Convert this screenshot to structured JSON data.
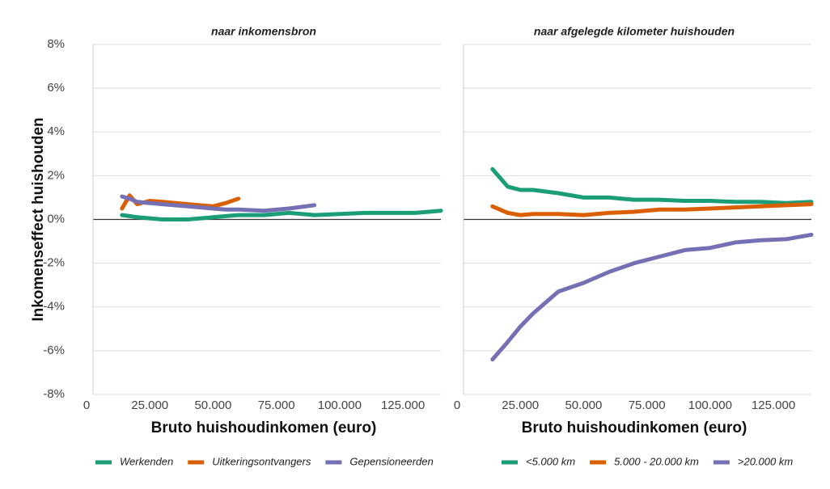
{
  "chart_data": [
    {
      "type": "line",
      "title": "naar inkomensbron",
      "xlabel": "Bruto huishoudinkomen (euro)",
      "ylabel": "Inkomenseffect huishouden",
      "x": [
        14000,
        17000,
        20000,
        25000,
        30000,
        40000,
        50000,
        55000,
        60000,
        70000,
        80000,
        90000,
        100000,
        110000,
        120000,
        130000,
        140000
      ],
      "series": [
        {
          "name": "Werkenden",
          "color": "#1b9e77",
          "values": [
            0.2,
            0.15,
            0.1,
            0.05,
            0.0,
            0.0,
            0.1,
            0.15,
            0.2,
            0.2,
            0.3,
            0.2,
            0.25,
            0.3,
            0.3,
            0.3,
            0.4
          ]
        },
        {
          "name": "Uitkeringsontvangers",
          "color": "#d95f02",
          "values": [
            0.5,
            1.1,
            0.7,
            0.85,
            0.8,
            0.7,
            0.6,
            0.75,
            0.95,
            null,
            null,
            null,
            null,
            null,
            null,
            null,
            null
          ]
        },
        {
          "name": "Gepensioneerden",
          "color": "#7570b3",
          "values": [
            1.05,
            0.95,
            0.8,
            0.75,
            0.7,
            0.6,
            0.5,
            0.45,
            0.45,
            0.4,
            0.5,
            0.65,
            null,
            null,
            null,
            null,
            null
          ]
        }
      ],
      "xlim": [
        0,
        140000
      ],
      "xticks": [
        0,
        {
          "value": 25000,
          "label": "25.000"
        },
        {
          "value": 50000,
          "label": "50.000"
        },
        {
          "value": 75000,
          "label": "75.000"
        },
        {
          "value": 100000,
          "label": "100.000"
        },
        {
          "value": 125000,
          "label": "125.000"
        }
      ],
      "ylim": [
        -8,
        8
      ],
      "yticks": [
        {
          "value": -8,
          "label": "-8%"
        },
        {
          "value": -6,
          "label": "-6%"
        },
        {
          "value": -4,
          "label": "-4%"
        },
        {
          "value": -2,
          "label": "-2%"
        },
        {
          "value": 0,
          "label": "0%"
        },
        {
          "value": 2,
          "label": "2%"
        },
        {
          "value": 4,
          "label": "4%"
        },
        {
          "value": 6,
          "label": "6%"
        },
        {
          "value": 8,
          "label": "8%"
        }
      ],
      "grid": true
    },
    {
      "type": "line",
      "title": "naar afgelegde kilometer huishouden",
      "xlabel": "Bruto huishoudinkomen (euro)",
      "x": [
        14000,
        20000,
        25000,
        30000,
        40000,
        50000,
        60000,
        70000,
        80000,
        90000,
        100000,
        110000,
        120000,
        130000,
        140000
      ],
      "series": [
        {
          "name": "<5.000 km",
          "color": "#1b9e77",
          "values": [
            2.3,
            1.5,
            1.35,
            1.35,
            1.2,
            1.0,
            1.0,
            0.9,
            0.9,
            0.85,
            0.85,
            0.8,
            0.8,
            0.75,
            0.8
          ]
        },
        {
          "name": "5.000 - 20.000 km",
          "color": "#d95f02",
          "values": [
            0.6,
            0.3,
            0.2,
            0.25,
            0.25,
            0.2,
            0.3,
            0.35,
            0.45,
            0.45,
            0.5,
            0.55,
            0.6,
            0.65,
            0.7
          ]
        },
        {
          "name": ">20.000 km",
          "color": "#7570b3",
          "values": [
            -6.4,
            -5.6,
            -4.9,
            -4.3,
            -3.3,
            -2.9,
            -2.4,
            -2.0,
            -1.7,
            -1.4,
            -1.3,
            -1.05,
            -0.95,
            -0.9,
            -0.7
          ]
        }
      ],
      "xlim": [
        0,
        140000
      ],
      "xticks": [
        0,
        {
          "value": 25000,
          "label": "25.000"
        },
        {
          "value": 50000,
          "label": "50.000"
        },
        {
          "value": 75000,
          "label": "75.000"
        },
        {
          "value": 100000,
          "label": "100.000"
        },
        {
          "value": 125000,
          "label": "125.000"
        }
      ],
      "ylim": [
        -8,
        8
      ],
      "grid": true
    }
  ]
}
